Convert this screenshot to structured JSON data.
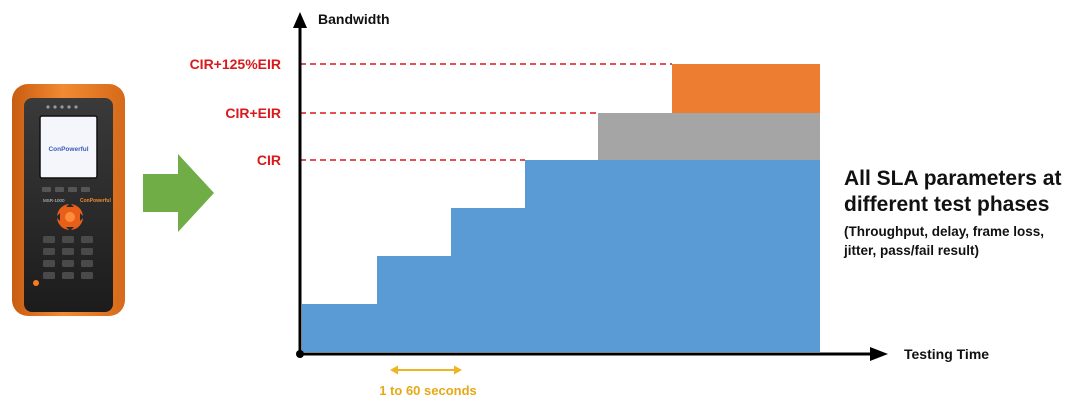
{
  "diagram": {
    "y_axis_label": "Bandwidth",
    "x_axis_label": "Testing Time",
    "levels": [
      {
        "label": "CIR+125%EIR"
      },
      {
        "label": "CIR+EIR"
      },
      {
        "label": "CIR"
      }
    ],
    "step_interval_label": "1 to 60 seconds",
    "caption": {
      "title_line1": "All SLA parameters at",
      "title_line2": "different test phases",
      "detail_line1": "(Throughput, delay, frame loss,",
      "detail_line2": "jitter, pass/fail result)"
    },
    "device": {
      "screen_text": "ConPowerful",
      "brand_text": "ConPowerful",
      "model_text": "MSR-1000"
    },
    "colors": {
      "cir_fill": "#5b9bd5",
      "eir_fill": "#a5a5a5",
      "overshoot_fill": "#ed7d31",
      "level_line": "#d9191c",
      "arrow": "#70ad47",
      "interval": "#f0b323",
      "device_body": "#ef7d23"
    }
  }
}
